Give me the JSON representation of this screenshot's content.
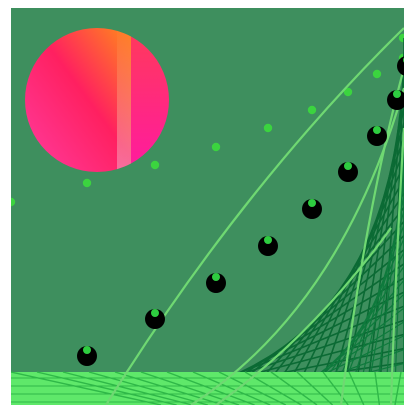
{
  "scene": {
    "background_color": "#3e8f5e",
    "ground_color": "#5fe86a",
    "mesh_color": "#0b6a34",
    "curve_color": "#6fd872",
    "ball_color": "#000000",
    "ball_highlight_color": "#2ecc40",
    "dot_color": "#3bd43f"
  },
  "sun": {
    "icon": "sun-circle",
    "gradient_colors": [
      "#ff8a1a",
      "#ff2060",
      "#ff3ca0"
    ],
    "right_panel_colors": [
      "#ff6a3a",
      "#f0a0c8"
    ]
  },
  "balls": {
    "count": 9,
    "icon": "black-ball"
  },
  "dots": {
    "count": 10,
    "icon": "green-dot"
  }
}
